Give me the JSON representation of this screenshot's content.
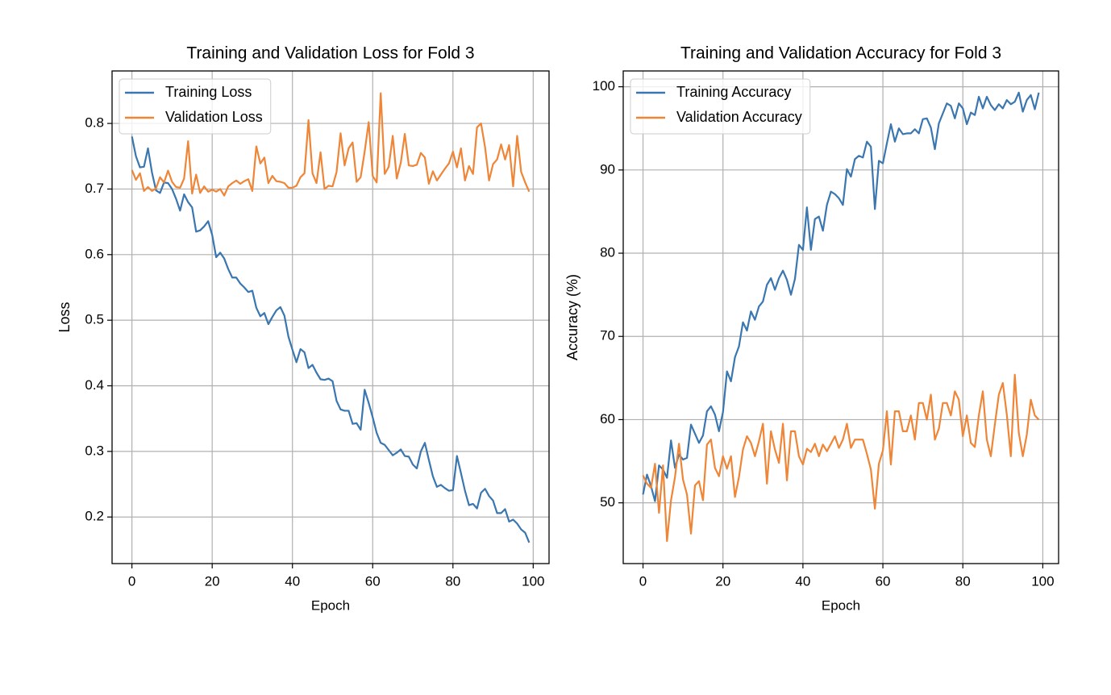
{
  "chart_data": [
    {
      "type": "line",
      "title": "Training and Validation Loss for Fold 3",
      "xlabel": "Epoch",
      "ylabel": "Loss",
      "x": [
        0,
        1,
        2,
        3,
        4,
        5,
        6,
        7,
        8,
        9,
        10,
        11,
        12,
        13,
        14,
        15,
        16,
        17,
        18,
        19,
        20,
        21,
        22,
        23,
        24,
        25,
        26,
        27,
        28,
        29,
        30,
        31,
        32,
        33,
        34,
        35,
        36,
        37,
        38,
        39,
        40,
        41,
        42,
        43,
        44,
        45,
        46,
        47,
        48,
        49,
        50,
        51,
        52,
        53,
        54,
        55,
        56,
        57,
        58,
        59,
        60,
        61,
        62,
        63,
        64,
        65,
        66,
        67,
        68,
        69,
        70,
        71,
        72,
        73,
        74,
        75,
        76,
        77,
        78,
        79,
        80,
        81,
        82,
        83,
        84,
        85,
        86,
        87,
        88,
        89,
        90,
        91,
        92,
        93,
        94,
        95,
        96,
        97,
        98,
        99
      ],
      "series": [
        {
          "name": "Training Loss",
          "color": "#3a76af",
          "values": [
            0.78,
            0.75,
            0.733,
            0.734,
            0.762,
            0.725,
            0.698,
            0.694,
            0.71,
            0.709,
            0.7,
            0.685,
            0.667,
            0.692,
            0.68,
            0.672,
            0.635,
            0.637,
            0.643,
            0.651,
            0.63,
            0.596,
            0.603,
            0.594,
            0.578,
            0.565,
            0.565,
            0.556,
            0.55,
            0.543,
            0.545,
            0.519,
            0.506,
            0.511,
            0.494,
            0.505,
            0.515,
            0.52,
            0.507,
            0.475,
            0.455,
            0.436,
            0.456,
            0.451,
            0.427,
            0.432,
            0.42,
            0.41,
            0.409,
            0.411,
            0.407,
            0.377,
            0.364,
            0.362,
            0.362,
            0.342,
            0.343,
            0.333,
            0.394,
            0.374,
            0.352,
            0.328,
            0.313,
            0.31,
            0.302,
            0.294,
            0.298,
            0.303,
            0.293,
            0.292,
            0.28,
            0.274,
            0.3,
            0.313,
            0.287,
            0.262,
            0.246,
            0.249,
            0.244,
            0.24,
            0.241,
            0.293,
            0.267,
            0.24,
            0.218,
            0.22,
            0.213,
            0.237,
            0.243,
            0.232,
            0.225,
            0.206,
            0.206,
            0.212,
            0.193,
            0.196,
            0.19,
            0.181,
            0.176,
            0.161
          ]
        },
        {
          "name": "Validation Loss",
          "color": "#ef8536",
          "values": [
            0.729,
            0.714,
            0.724,
            0.697,
            0.703,
            0.697,
            0.701,
            0.718,
            0.71,
            0.728,
            0.711,
            0.703,
            0.702,
            0.716,
            0.773,
            0.693,
            0.722,
            0.694,
            0.704,
            0.696,
            0.699,
            0.696,
            0.7,
            0.69,
            0.704,
            0.709,
            0.713,
            0.708,
            0.712,
            0.715,
            0.697,
            0.765,
            0.739,
            0.748,
            0.709,
            0.72,
            0.712,
            0.711,
            0.709,
            0.702,
            0.702,
            0.705,
            0.718,
            0.724,
            0.805,
            0.724,
            0.709,
            0.756,
            0.7,
            0.705,
            0.704,
            0.726,
            0.785,
            0.736,
            0.762,
            0.771,
            0.711,
            0.718,
            0.757,
            0.802,
            0.72,
            0.71,
            0.846,
            0.723,
            0.734,
            0.781,
            0.716,
            0.74,
            0.784,
            0.736,
            0.735,
            0.737,
            0.755,
            0.748,
            0.708,
            0.727,
            0.713,
            0.722,
            0.731,
            0.739,
            0.757,
            0.733,
            0.762,
            0.713,
            0.735,
            0.723,
            0.794,
            0.8,
            0.764,
            0.713,
            0.738,
            0.745,
            0.768,
            0.745,
            0.767,
            0.704,
            0.781,
            0.726,
            0.71,
            0.696
          ]
        }
      ],
      "xlim": [
        -4.95,
        103.95
      ],
      "ylim": [
        0.129,
        0.88
      ],
      "xticks": [
        0,
        20,
        40,
        60,
        80,
        100
      ],
      "yticks": [
        0.2,
        0.3,
        0.4,
        0.5,
        0.6,
        0.7,
        0.8
      ],
      "grid": true,
      "legend": "upper left"
    },
    {
      "type": "line",
      "title": "Training and Validation Accuracy for Fold 3",
      "xlabel": "Epoch",
      "ylabel": "Accuracy (%)",
      "x": [
        0,
        1,
        2,
        3,
        4,
        5,
        6,
        7,
        8,
        9,
        10,
        11,
        12,
        13,
        14,
        15,
        16,
        17,
        18,
        19,
        20,
        21,
        22,
        23,
        24,
        25,
        26,
        27,
        28,
        29,
        30,
        31,
        32,
        33,
        34,
        35,
        36,
        37,
        38,
        39,
        40,
        41,
        42,
        43,
        44,
        45,
        46,
        47,
        48,
        49,
        50,
        51,
        52,
        53,
        54,
        55,
        56,
        57,
        58,
        59,
        60,
        61,
        62,
        63,
        64,
        65,
        66,
        67,
        68,
        69,
        70,
        71,
        72,
        73,
        74,
        75,
        76,
        77,
        78,
        79,
        80,
        81,
        82,
        83,
        84,
        85,
        86,
        87,
        88,
        89,
        90,
        91,
        92,
        93,
        94,
        95,
        96,
        97,
        98,
        99
      ],
      "series": [
        {
          "name": "Training Accuracy",
          "color": "#3a76af",
          "values": [
            51,
            53.4,
            52,
            50.2,
            54.5,
            54,
            53,
            57.5,
            54.2,
            55.8,
            55.2,
            55.4,
            59.4,
            58.3,
            57.2,
            58.1,
            61,
            61.6,
            60.6,
            58.6,
            60.9,
            65.8,
            64.6,
            67.5,
            68.8,
            71.7,
            70.7,
            73,
            72,
            73.6,
            74.2,
            76.2,
            77,
            75.6,
            77,
            77.9,
            76.8,
            75,
            76.9,
            81,
            80.4,
            85.5,
            80.4,
            84.1,
            84.4,
            82.7,
            85.8,
            87.4,
            87.1,
            86.6,
            85.8,
            90.1,
            89.2,
            91.3,
            91.7,
            91.5,
            93.4,
            92.8,
            85.3,
            91.1,
            90.8,
            93.2,
            95.5,
            93.4,
            95,
            94.3,
            94.4,
            94.4,
            94.9,
            94.4,
            96.1,
            96.2,
            95.1,
            92.5,
            95.6,
            96.8,
            98,
            97.7,
            96.2,
            98,
            97.4,
            95.5,
            96.9,
            96.6,
            98.8,
            97.4,
            98.8,
            97.8,
            97.2,
            97.9,
            97.4,
            98.4,
            97.9,
            98.2,
            99.3,
            97,
            98.4,
            99,
            97.3,
            99.3
          ]
        },
        {
          "name": "Validation Accuracy",
          "color": "#ef8536",
          "values": [
            53.3,
            52.3,
            51.8,
            54.7,
            48.8,
            54.5,
            45.4,
            50.3,
            53.1,
            57.1,
            52.8,
            51,
            46.3,
            52.1,
            52.6,
            50.3,
            57,
            57.6,
            54.2,
            53.2,
            55.6,
            54.1,
            55.6,
            50.7,
            53.1,
            56.4,
            58,
            57.2,
            55.6,
            57.4,
            59.5,
            52.3,
            58.6,
            56.4,
            54.8,
            59.5,
            52.7,
            58.6,
            58.6,
            55.6,
            54.6,
            56.5,
            56.1,
            57.1,
            55.6,
            57,
            56.2,
            57.1,
            58,
            56.6,
            57.6,
            59.5,
            56.6,
            57.6,
            57.6,
            57.6,
            55.9,
            54,
            49.3,
            54.7,
            56.3,
            61,
            54.6,
            61,
            61,
            58.6,
            58.6,
            60.5,
            57.6,
            62,
            62,
            60,
            63,
            57.6,
            58.9,
            62,
            62,
            60.5,
            63.4,
            62.4,
            58,
            60.5,
            57.2,
            56.7,
            60.5,
            63.4,
            57.6,
            55.6,
            59.4,
            63,
            64.4,
            60.6,
            55.6,
            65.4,
            58.4,
            55.6,
            58.2,
            62.4,
            60.5,
            60
          ]
        }
      ],
      "xlim": [
        -4.95,
        103.95
      ],
      "ylim": [
        42.7,
        101.9
      ],
      "xticks": [
        0,
        20,
        40,
        60,
        80,
        100
      ],
      "yticks": [
        50,
        60,
        70,
        80,
        90,
        100
      ],
      "grid": true,
      "legend": "upper left"
    }
  ]
}
